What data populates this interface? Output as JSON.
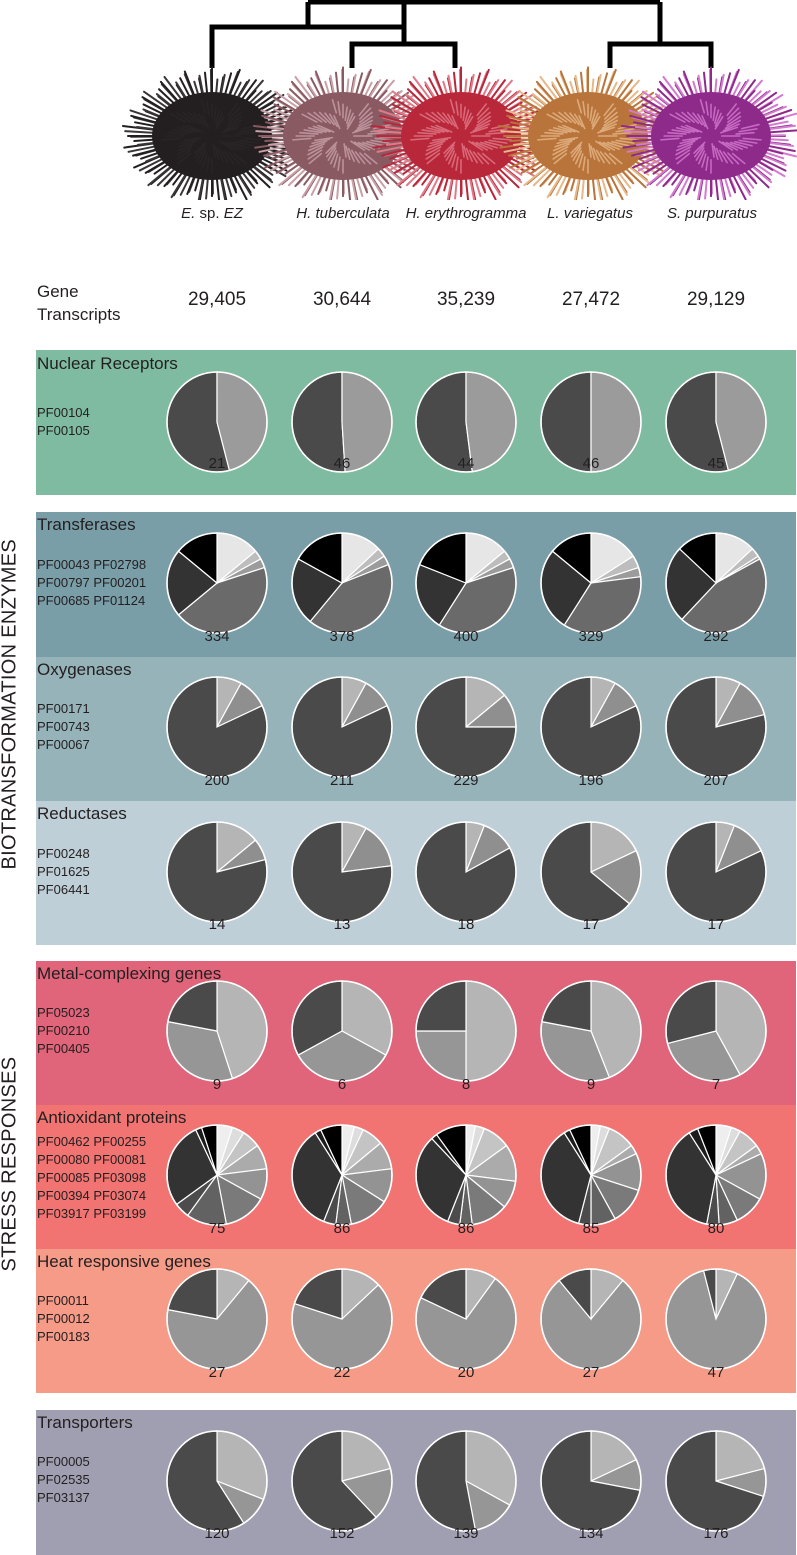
{
  "species": [
    {
      "genus": "E.",
      "rest": " sp. ",
      "italic_tail": "EZ",
      "name": "E. sp. EZ",
      "color": "#231f20",
      "spine": "#3a3536"
    },
    {
      "genus": "H. tuberculata",
      "rest": "",
      "italic_tail": "",
      "name": "H. tuberculata",
      "color": "#8a5a63",
      "spine": "#c9a0a8"
    },
    {
      "genus": "H. erythrogramma",
      "rest": "",
      "italic_tail": "",
      "name": "H. erythrogramma",
      "color": "#b8273a",
      "spine": "#e07a88"
    },
    {
      "genus": "L. variegatus",
      "rest": "",
      "italic_tail": "",
      "name": "L. variegatus",
      "color": "#b8743a",
      "spine": "#e6b88a"
    },
    {
      "genus": "S. purpuratus",
      "rest": "",
      "italic_tail": "",
      "name": "S. purpuratus",
      "color": "#8e2a8a",
      "spine": "#d47ad0"
    }
  ],
  "gene_transcripts": {
    "label_line1": "Gene",
    "label_line2": "Transcripts",
    "values": [
      "29,405",
      "30,644",
      "35,239",
      "27,472",
      "29,129"
    ]
  },
  "group_labels": {
    "biotransformation": "BIOTRANSFORMATION ENZYMES",
    "stress": "STRESS RESPONSES"
  },
  "panels": [
    {
      "id": "nuclear",
      "title": "Nuclear Receptors",
      "codes": "PF00104\nPF00105",
      "bg": "#7fbba0",
      "totals": [
        "21",
        "46",
        "44",
        "46",
        "45"
      ],
      "fractions": [
        [
          0.54,
          0.46
        ],
        [
          0.51,
          0.49
        ],
        [
          0.52,
          0.48
        ],
        [
          0.5,
          0.5
        ],
        [
          0.54,
          0.46
        ]
      ],
      "colors": [
        "#4a4a4a",
        "#9b9b9b"
      ],
      "start": "top-ccw"
    },
    {
      "id": "transferases",
      "title": "Transferases",
      "codes": "PF00043 PF02798\nPF00797 PF00201\nPF00685 PF01124",
      "bg": "#7a9ea8",
      "totals": [
        "334",
        "378",
        "400",
        "329",
        "292"
      ],
      "fractions": [
        [
          0.14,
          0.03,
          0.03,
          0.44,
          0.22,
          0.14
        ],
        [
          0.13,
          0.03,
          0.03,
          0.42,
          0.22,
          0.17
        ],
        [
          0.14,
          0.03,
          0.03,
          0.39,
          0.22,
          0.19
        ],
        [
          0.16,
          0.04,
          0.03,
          0.36,
          0.27,
          0.14
        ],
        [
          0.13,
          0.03,
          0.01,
          0.45,
          0.25,
          0.13
        ]
      ],
      "colors": [
        "#e6e6e6",
        "#bdbdbd",
        "#9b9b9b",
        "#6a6a6a",
        "#333333",
        "#000000"
      ],
      "start": "top-cw"
    },
    {
      "id": "oxygenases",
      "title": "Oxygenases",
      "codes": "PF00171\nPF00743\nPF00067",
      "bg": "#95b3b9",
      "totals": [
        "200",
        "211",
        "229",
        "196",
        "207"
      ],
      "fractions": [
        [
          0.08,
          0.1,
          0.82
        ],
        [
          0.08,
          0.1,
          0.82
        ],
        [
          0.14,
          0.11,
          0.75
        ],
        [
          0.08,
          0.1,
          0.82
        ],
        [
          0.08,
          0.13,
          0.79
        ]
      ],
      "colors": [
        "#b5b5b5",
        "#8f8f8f",
        "#4a4a4a"
      ],
      "start": "top-cw"
    },
    {
      "id": "reductases",
      "title": "Reductases",
      "codes": "PF00248\nPF01625\nPF06441",
      "bg": "#bfcfd7",
      "totals": [
        "14",
        "13",
        "18",
        "17",
        "17"
      ],
      "fractions": [
        [
          0.14,
          0.07,
          0.79
        ],
        [
          0.08,
          0.15,
          0.77
        ],
        [
          0.06,
          0.11,
          0.83
        ],
        [
          0.18,
          0.18,
          0.64
        ],
        [
          0.06,
          0.12,
          0.82
        ]
      ],
      "colors": [
        "#b5b5b5",
        "#8f8f8f",
        "#4a4a4a"
      ],
      "start": "top-cw"
    },
    {
      "id": "metal",
      "title": "Metal-complexing genes",
      "codes": "PF05023\nPF00210\nPF00405",
      "bg": "#e0647a",
      "totals": [
        "9",
        "6",
        "8",
        "9",
        "7"
      ],
      "fractions": [
        [
          0.45,
          0.33,
          0.22
        ],
        [
          0.33,
          0.34,
          0.33
        ],
        [
          0.5,
          0.25,
          0.25
        ],
        [
          0.44,
          0.34,
          0.22
        ],
        [
          0.42,
          0.29,
          0.29
        ]
      ],
      "colors": [
        "#b5b5b5",
        "#969696",
        "#4a4a4a"
      ],
      "start": "top-cw"
    },
    {
      "id": "antioxidant",
      "title": "Antioxidant proteins",
      "codes": "PF00462 PF00255\nPF00080 PF00081\nPF00085 PF03098\nPF00394 PF03074\nPF03917 PF03199",
      "bg": "#f27472",
      "totals": [
        "75",
        "86",
        "86",
        "85",
        "80"
      ],
      "fractions": [
        [
          0.05,
          0.04,
          0.06,
          0.08,
          0.1,
          0.14,
          0.13,
          0.05,
          0.28,
          0.02,
          0.05
        ],
        [
          0.04,
          0.03,
          0.07,
          0.09,
          0.11,
          0.13,
          0.05,
          0.04,
          0.35,
          0.02,
          0.07
        ],
        [
          0.03,
          0.03,
          0.09,
          0.12,
          0.09,
          0.12,
          0.04,
          0.04,
          0.32,
          0.02,
          0.1
        ],
        [
          0.03,
          0.03,
          0.09,
          0.03,
          0.12,
          0.12,
          0.08,
          0.04,
          0.37,
          0.02,
          0.07
        ],
        [
          0.05,
          0.03,
          0.07,
          0.03,
          0.15,
          0.1,
          0.06,
          0.04,
          0.38,
          0.03,
          0.06
        ]
      ],
      "colors": [
        "#eeeeee",
        "#dddddd",
        "#c4c4c4",
        "#ababab",
        "#939393",
        "#7a7a7a",
        "#626262",
        "#4c4c4c",
        "#333333",
        "#1c1c1c",
        "#000000"
      ],
      "start": "top-cw"
    },
    {
      "id": "heat",
      "title": "Heat responsive genes",
      "codes": "PF00011\nPF00012\nPF00183",
      "bg": "#f59b88",
      "totals": [
        "27",
        "22",
        "20",
        "27",
        "47"
      ],
      "fractions": [
        [
          0.11,
          0.67,
          0.22
        ],
        [
          0.13,
          0.67,
          0.2
        ],
        [
          0.1,
          0.72,
          0.18
        ],
        [
          0.11,
          0.78,
          0.11
        ],
        [
          0.07,
          0.89,
          0.04
        ]
      ],
      "colors": [
        "#b5b5b5",
        "#969696",
        "#4a4a4a"
      ],
      "start": "top-cw"
    },
    {
      "id": "transporters",
      "title": "Transporters",
      "codes": "PF00005\nPF02535\nPF03137",
      "bg": "#a09fb2",
      "totals": [
        "120",
        "152",
        "139",
        "134",
        "176"
      ],
      "fractions": [
        [
          0.31,
          0.1,
          0.59
        ],
        [
          0.21,
          0.17,
          0.62
        ],
        [
          0.33,
          0.14,
          0.53
        ],
        [
          0.18,
          0.1,
          0.72
        ],
        [
          0.21,
          0.09,
          0.7
        ]
      ],
      "colors": [
        "#b5b5b5",
        "#969696",
        "#4a4a4a"
      ],
      "start": "top-cw"
    }
  ]
}
